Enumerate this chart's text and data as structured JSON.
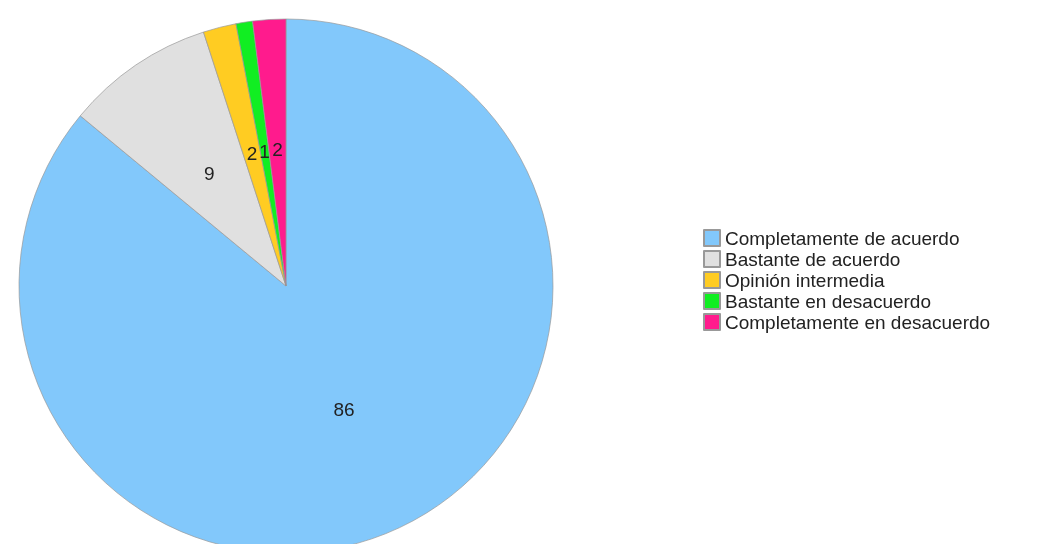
{
  "chart_data": {
    "type": "pie",
    "categories": [
      "Completamente de acuerdo",
      "Bastante de acuerdo",
      "Opinión intermedia",
      "Bastante en desacuerdo",
      "Completamente en desacuerdo"
    ],
    "values": [
      86,
      9,
      2,
      1,
      2
    ],
    "colors": [
      "#82c8fb",
      "#e0e0e0",
      "#ffcc22",
      "#11ee22",
      "#ff1b8d"
    ],
    "data_labels": true,
    "legend": "right"
  }
}
